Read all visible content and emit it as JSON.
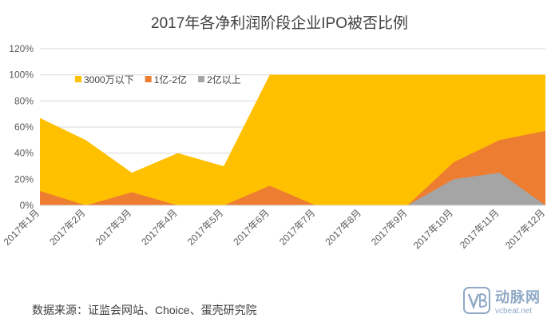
{
  "source_note": "数据来源：证监会网站、Choice、蛋壳研究院",
  "watermark": {
    "brand": "动脉网",
    "url": "vcbeat.net"
  },
  "colors": {
    "s1": "#FFC000",
    "s2": "#ED7D31",
    "s3": "#A5A5A5",
    "grid": "#D9D9D9",
    "text": "#595959"
  },
  "chart_data": {
    "type": "area",
    "stacked": false,
    "title": "2017年各净利润阶段企业IPO被否比例",
    "categories": [
      "2017年1月",
      "2017年2月",
      "2017年3月",
      "2017年4月",
      "2017年5月",
      "2017年6月",
      "2017年7月",
      "2017年8月",
      "2017年9月",
      "2017年10月",
      "2017年11月",
      "2017年12月"
    ],
    "yticks": [
      "0%",
      "20%",
      "40%",
      "60%",
      "80%",
      "100%",
      "120%"
    ],
    "ylim": [
      0,
      120
    ],
    "grid": true,
    "legend_position": "top-left",
    "series": [
      {
        "name": "3000万以下",
        "values": [
          67,
          50,
          25,
          40,
          30,
          100,
          100,
          100,
          100,
          100,
          100,
          100
        ]
      },
      {
        "name": "1亿-2亿",
        "values": [
          11,
          0,
          10,
          0,
          0,
          15,
          0,
          0,
          0,
          33,
          50,
          57
        ]
      },
      {
        "name": "2亿以上",
        "values": [
          0,
          0,
          0,
          0,
          0,
          0,
          0,
          0,
          0,
          20,
          25,
          0
        ]
      }
    ]
  }
}
